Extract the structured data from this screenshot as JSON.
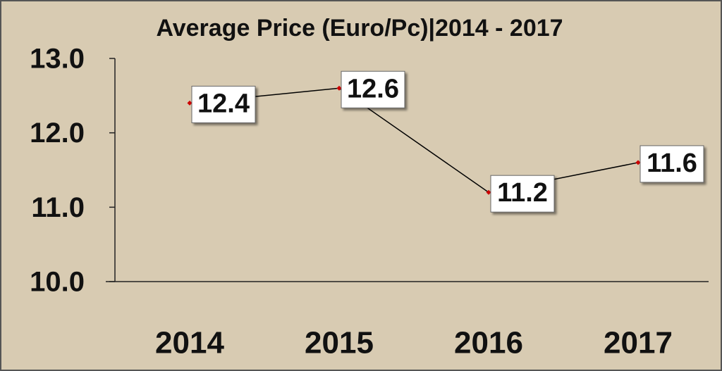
{
  "chart_data": {
    "type": "line",
    "title": "Average Price (Euro/Pc)|2014 - 2017",
    "categories": [
      "2014",
      "2015",
      "2016",
      "2017"
    ],
    "values": [
      12.4,
      12.6,
      11.2,
      11.6
    ],
    "color": "#000000",
    "marker_color": "#cc0000",
    "ylim": [
      10,
      13
    ],
    "yticks": [
      {
        "value": 10,
        "label": "10.0"
      },
      {
        "value": 11,
        "label": "11.0"
      },
      {
        "value": 12,
        "label": "12.0"
      },
      {
        "value": 13,
        "label": "13.0"
      }
    ]
  }
}
